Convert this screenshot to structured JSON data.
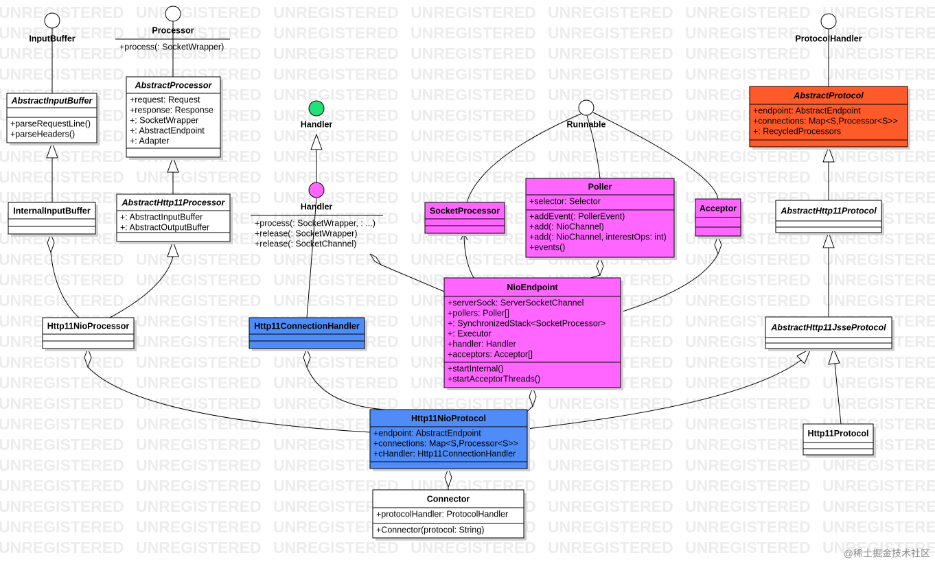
{
  "watermark": "UNREGISTERED",
  "credit": "@稀土掘金技术社区",
  "interfaces": [
    {
      "label": "InputBuffer",
      "color": "#ffffff"
    },
    {
      "label": "Processor",
      "color": "#ffffff",
      "operations": [
        "+process(: SocketWrapper)"
      ]
    },
    {
      "label": "Handler",
      "color": "#22e07a"
    },
    {
      "label": "Handler",
      "color": "#ff66ff",
      "operations": [
        "+process(: SocketWrapper, : ...)",
        "+release(: SocketWrapper)",
        "+release(: SocketChannel)"
      ]
    },
    {
      "label": "Runnable",
      "color": "#ffffff"
    },
    {
      "label": "ProtocolHandler",
      "color": "#ffffff"
    }
  ],
  "classes": [
    {
      "name": "AbstractInputBuffer",
      "abstract": true,
      "color": "#ffffff",
      "attributes": [],
      "operations": [
        "+parseRequestLine()",
        "+parseHeaders()"
      ]
    },
    {
      "name": "AbstractProcessor",
      "abstract": true,
      "color": "#ffffff",
      "attributes": [
        "+request: Request",
        "+response: Response",
        "+: SocketWrapper",
        "+: AbstractEndpoint",
        "+: Adapter"
      ],
      "operations": []
    },
    {
      "name": "InternalInputBuffer",
      "abstract": false,
      "color": "#ffffff",
      "attributes": [],
      "operations": []
    },
    {
      "name": "AbstractHttp11Processor",
      "abstract": true,
      "color": "#ffffff",
      "attributes": [
        "+: AbstractInputBuffer",
        "+: AbstractOutputBuffer"
      ],
      "operations": []
    },
    {
      "name": "Http11NioProcessor",
      "abstract": false,
      "color": "#ffffff",
      "attributes": [],
      "operations": []
    },
    {
      "name": "Http11ConnectionHandler",
      "abstract": false,
      "color": "#4f8cf7",
      "attributes": [],
      "operations": []
    },
    {
      "name": "SocketProcessor",
      "abstract": false,
      "color": "#ff66ff",
      "attributes": [],
      "operations": []
    },
    {
      "name": "Poller",
      "abstract": false,
      "color": "#ff66ff",
      "attributes": [
        "+selector: Selector"
      ],
      "operations": [
        "+addEvent(: PollerEvent)",
        "+add(: NioChannel)",
        "+add(: NioChannel, interestOps: int)",
        "+events()"
      ]
    },
    {
      "name": "Acceptor",
      "abstract": false,
      "color": "#ff66ff",
      "attributes": [],
      "operations": []
    },
    {
      "name": "NioEndpoint",
      "abstract": false,
      "color": "#ff66ff",
      "attributes": [
        "+serverSock: ServerSocketChannel",
        "+pollers: Poller[]",
        "+: SynchronizedStack<SocketProcessor>",
        "+: Executor",
        "+handler: Handler",
        "+acceptors: Acceptor[]"
      ],
      "operations": [
        "+startInternal()",
        "+startAcceptorThreads()"
      ]
    },
    {
      "name": "AbstractProtocol",
      "abstract": true,
      "color": "#ff5a2a",
      "attributes": [
        "+endpoint: AbstractEndpoint",
        "+connections: Map<S,Processor<S>>",
        "+: RecycledProcessors"
      ],
      "operations": []
    },
    {
      "name": "AbstractHttp11Protocol",
      "abstract": true,
      "color": "#ffffff",
      "attributes": [],
      "operations": []
    },
    {
      "name": "AbstractHttp11JsseProtocol",
      "abstract": true,
      "color": "#ffffff",
      "attributes": [],
      "operations": []
    },
    {
      "name": "Http11Protocol",
      "abstract": false,
      "color": "#ffffff",
      "attributes": [],
      "operations": []
    },
    {
      "name": "Http11NioProtocol",
      "abstract": false,
      "color": "#4f8cf7",
      "attributes": [
        "+endpoint: AbstractEndpoint",
        "+connections: Map<S,Processor<S>>",
        "+cHandler: Http11ConnectionHandler"
      ],
      "operations": []
    },
    {
      "name": "Connector",
      "abstract": false,
      "color": "#ffffff",
      "attributes": [
        "+protocolHandler: ProtocolHandler"
      ],
      "operations": [
        "+Connector(protocol: String)"
      ]
    }
  ]
}
